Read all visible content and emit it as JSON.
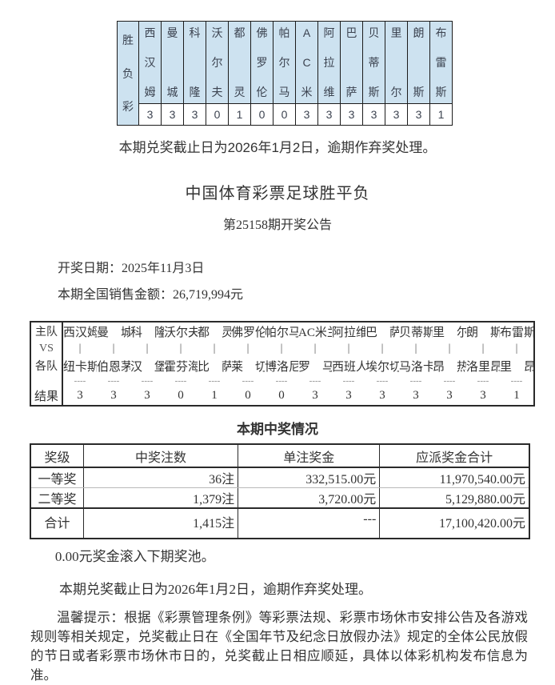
{
  "page": {
    "bg": "#ffffff",
    "text_color": "#333333",
    "header_cell_bg": "#cde2f0",
    "border_color": "#2a2a2a"
  },
  "top_table": {
    "corner_label": "胜负彩",
    "teams": [
      "西汉姆",
      "曼城",
      "科隆",
      "沃尔夫",
      "都灵",
      "佛罗伦",
      "帕尔马",
      "AC米",
      "阿拉维",
      "巴萨",
      "贝蒂斯",
      "里尔",
      "朗斯",
      "布雷斯"
    ],
    "results": [
      "3",
      "3",
      "3",
      "0",
      "1",
      "0",
      "0",
      "3",
      "3",
      "3",
      "3",
      "3",
      "3",
      "1"
    ]
  },
  "top_deadline": "本期兑奖截止日为2026年1月2日，逾期作弃奖处理。",
  "header": {
    "title": "中国体育彩票足球胜平负",
    "subtitle": "第25158期开奖公告"
  },
  "info": {
    "draw_date_line": "开奖日期：2025年11月3日",
    "sales_line": "本期全国销售金额：26,719,994元"
  },
  "match_table": {
    "row_labels": {
      "home": "主队",
      "vs": "VS",
      "away": "各队",
      "result": "结果"
    },
    "vs_symbol": "|",
    "separator": "----",
    "home_teams": [
      "西汉姆",
      "曼城",
      "科隆",
      "沃尔夫",
      "都灵",
      "佛罗伦",
      "帕尔马",
      "AC米兰",
      "阿拉维",
      "巴萨",
      "贝蒂斯",
      "里尔",
      "朗斯",
      "布雷斯"
    ],
    "away_teams": [
      "纽卡斯",
      "伯恩茅",
      "汉堡",
      "霍芬海",
      "比萨",
      "莱切",
      "博洛尼",
      "罗马",
      "西班人",
      "埃尔切",
      "马洛卡",
      "昂热",
      "洛里昂",
      "里昂"
    ],
    "results": [
      "3",
      "3",
      "3",
      "0",
      "1",
      "0",
      "0",
      "3",
      "3",
      "3",
      "3",
      "3",
      "3",
      "1"
    ]
  },
  "winning_section": {
    "title": "本期中奖情况",
    "table": {
      "headers": [
        "奖级",
        "中奖注数",
        "单注奖金",
        "应派奖金合计"
      ],
      "rows": [
        [
          "一等奖",
          "36注",
          "332,515.00元",
          "11,970,540.00元"
        ],
        [
          "二等奖",
          "1,379注",
          "3,720.00元",
          "5,129,880.00元"
        ],
        [
          "合计",
          "1,415注",
          "---",
          "17,100,420.00元"
        ]
      ]
    },
    "rollover": "0.00元奖金滚入下期奖池。"
  },
  "footer": {
    "deadline": "本期兑奖截止日为2026年1月2日，逾期作弃奖处理。",
    "notice": "温馨提示：根据《彩票管理条例》等彩票法规、彩票市场休市安排公告及各游戏规则等相关规定，兑奖截止日在《全国年节及纪念日放假办法》规定的全体公民放假的节日或者彩票市场休市日的，兑奖截止日相应顺延，具体以体彩机构发布信息为准。"
  }
}
